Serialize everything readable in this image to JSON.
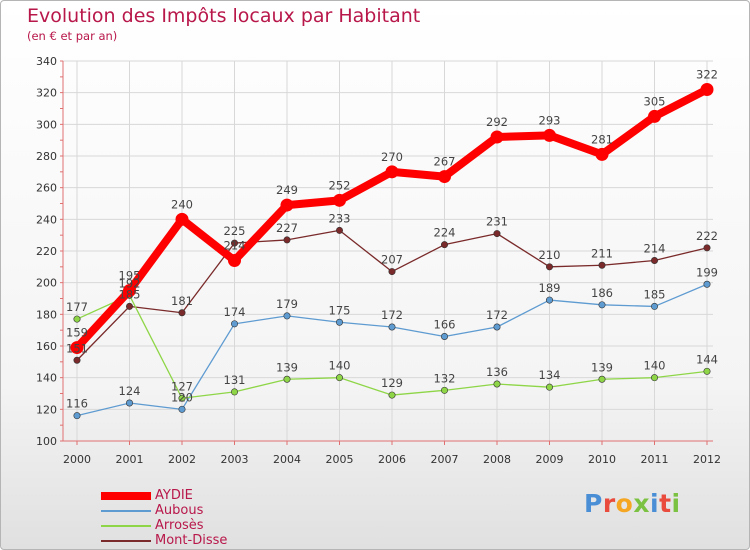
{
  "chart_data": {
    "type": "line",
    "title": "Evolution des Impôts locaux par Habitant",
    "subtitle": "(en € et par an)",
    "x": [
      "2000",
      "2001",
      "2002",
      "2003",
      "2004",
      "2005",
      "2006",
      "2007",
      "2008",
      "2009",
      "2010",
      "2011",
      "2012"
    ],
    "ylim": [
      100,
      340
    ],
    "yticks": [
      100,
      120,
      140,
      160,
      180,
      200,
      220,
      240,
      260,
      280,
      300,
      320,
      340
    ],
    "grid": true,
    "legend_position": "bottom-left",
    "series": [
      {
        "name": "AYDIE",
        "color": "#ff0000",
        "values": [
          159,
          195,
          240,
          214,
          249,
          252,
          270,
          267,
          292,
          293,
          281,
          305,
          322
        ]
      },
      {
        "name": "Aubous",
        "color": "#5e9bd1",
        "values": [
          116,
          124,
          120,
          174,
          179,
          175,
          172,
          166,
          172,
          189,
          186,
          185,
          199
        ]
      },
      {
        "name": "Arrosès",
        "color": "#8ed647",
        "values": [
          177,
          192,
          127,
          131,
          139,
          140,
          129,
          132,
          136,
          134,
          139,
          140,
          144
        ]
      },
      {
        "name": "Mont-Disse",
        "color": "#7a2a2a",
        "values": [
          151,
          185,
          181,
          225,
          227,
          233,
          207,
          224,
          231,
          210,
          211,
          214,
          222
        ]
      }
    ]
  },
  "logo": {
    "letters": [
      {
        "ch": "P",
        "color": "#4a8fd6"
      },
      {
        "ch": "r",
        "color": "#e94b3c"
      },
      {
        "ch": "o",
        "color": "#f5a623"
      },
      {
        "ch": "x",
        "color": "#7cc242"
      },
      {
        "ch": "i",
        "color": "#4a8fd6"
      },
      {
        "ch": "t",
        "color": "#e94b3c"
      },
      {
        "ch": "i",
        "color": "#7cc242"
      }
    ]
  }
}
